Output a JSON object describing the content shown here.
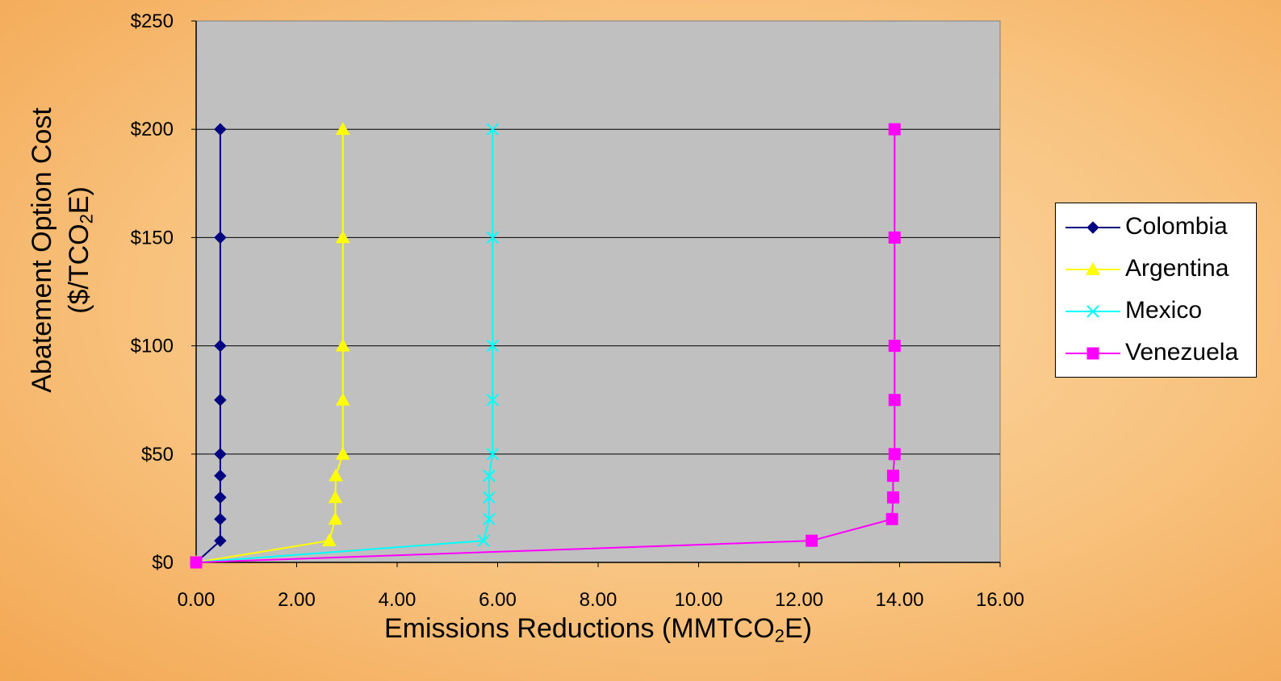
{
  "chart_data": {
    "type": "line",
    "title": "",
    "xlabel": {
      "text": "Emissions Reductions (MMTCO",
      "sub": "2",
      "tail": "E)"
    },
    "ylabel": {
      "line1": "Abatement Option Cost",
      "line2_pre": "($/TCO",
      "line2_sub": "2",
      "line2_post": "E)"
    },
    "xlim": [
      0,
      16
    ],
    "ylim": [
      0,
      250
    ],
    "x_ticks": [
      "0.00",
      "2.00",
      "4.00",
      "6.00",
      "8.00",
      "10.00",
      "12.00",
      "14.00",
      "16.00"
    ],
    "y_ticks": [
      "$0",
      "$50",
      "$100",
      "$150",
      "$200",
      "$250"
    ],
    "grid": "horizontal",
    "legend_position": "right",
    "plot_background": "#c0c0c0",
    "series": [
      {
        "name": "Colombia",
        "color": "#000080",
        "marker": "diamond",
        "points": [
          [
            0,
            0
          ],
          [
            0.48,
            10
          ],
          [
            0.48,
            20
          ],
          [
            0.48,
            30
          ],
          [
            0.48,
            40
          ],
          [
            0.48,
            50
          ],
          [
            0.48,
            75
          ],
          [
            0.48,
            100
          ],
          [
            0.48,
            150
          ],
          [
            0.48,
            200
          ]
        ]
      },
      {
        "name": "Argentina",
        "color": "#ffff00",
        "marker": "triangle",
        "points": [
          [
            0,
            0
          ],
          [
            2.65,
            10
          ],
          [
            2.77,
            20
          ],
          [
            2.77,
            30
          ],
          [
            2.78,
            40
          ],
          [
            2.92,
            50
          ],
          [
            2.92,
            75
          ],
          [
            2.92,
            100
          ],
          [
            2.92,
            150
          ],
          [
            2.92,
            200
          ]
        ]
      },
      {
        "name": "Mexico",
        "color": "#00ffff",
        "marker": "x",
        "points": [
          [
            0,
            0
          ],
          [
            5.72,
            10
          ],
          [
            5.83,
            20
          ],
          [
            5.83,
            30
          ],
          [
            5.83,
            40
          ],
          [
            5.9,
            50
          ],
          [
            5.9,
            75
          ],
          [
            5.9,
            100
          ],
          [
            5.9,
            150
          ],
          [
            5.9,
            200
          ]
        ]
      },
      {
        "name": "Venezuela",
        "color": "#ff00ff",
        "marker": "square",
        "points": [
          [
            0,
            0
          ],
          [
            12.25,
            10
          ],
          [
            13.85,
            20
          ],
          [
            13.87,
            30
          ],
          [
            13.87,
            40
          ],
          [
            13.9,
            50
          ],
          [
            13.9,
            75
          ],
          [
            13.9,
            100
          ],
          [
            13.9,
            150
          ],
          [
            13.9,
            200
          ]
        ]
      }
    ]
  }
}
